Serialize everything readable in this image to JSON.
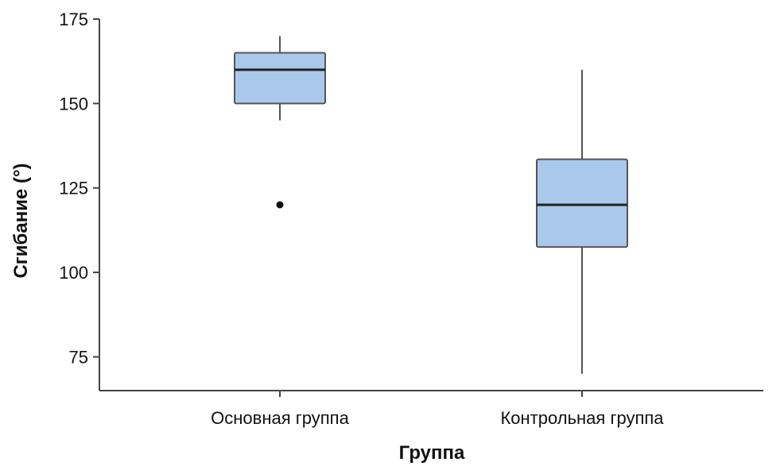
{
  "chart_data": {
    "type": "box",
    "xlabel": "Группа",
    "ylabel": "Сгибание (°)",
    "ylim": [
      65,
      175
    ],
    "yticks": [
      75,
      100,
      125,
      150,
      175
    ],
    "grid": false,
    "box_color": "#a9c8eb",
    "categories": [
      "Основная группа",
      "Контрольная группа"
    ],
    "boxes": [
      {
        "category": "Основная группа",
        "whisker_low": 145,
        "q1": 150,
        "median": 160,
        "q3": 165,
        "whisker_high": 170,
        "outliers": [
          120
        ]
      },
      {
        "category": "Контрольная группа",
        "whisker_low": 70,
        "q1": 107.5,
        "median": 120,
        "q3": 133.5,
        "whisker_high": 160,
        "outliers": []
      }
    ]
  }
}
